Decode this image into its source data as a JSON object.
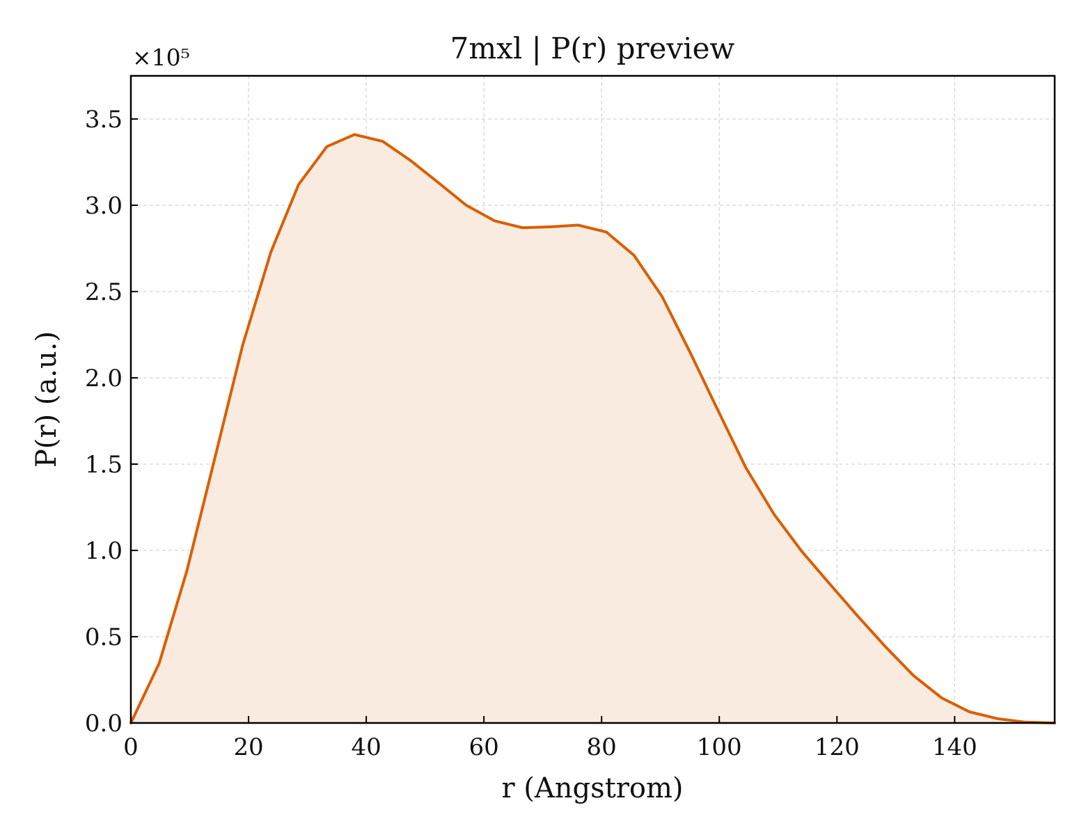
{
  "chart_data": {
    "type": "area",
    "title": "7mxl | P(r) preview",
    "xlabel": "r (Angstrom)",
    "ylabel": "P(r) (a.u.)",
    "y_multiplier_label": "×10⁵",
    "y_scale": 100000,
    "xlim": [
      0,
      157
    ],
    "ylim": [
      0,
      375000
    ],
    "x_ticks": [
      0,
      20,
      40,
      60,
      80,
      100,
      120,
      140
    ],
    "y_ticks": [
      0,
      50000,
      100000,
      150000,
      200000,
      250000,
      300000,
      350000
    ],
    "y_tick_labels": [
      "0.0",
      "0.5",
      "1.0",
      "1.5",
      "2.0",
      "2.5",
      "3.0",
      "3.5"
    ],
    "grid": true,
    "line_color": "#d95f02",
    "fill_color": "#f9ebe0",
    "series": [
      {
        "x": [
          0,
          4.8,
          9.5,
          14.3,
          19.0,
          23.8,
          28.5,
          33.3,
          38.0,
          42.8,
          47.5,
          52.3,
          57.0,
          61.8,
          66.5,
          71.3,
          76.0,
          80.8,
          85.5,
          90.3,
          95.0,
          99.8,
          104.5,
          109.3,
          114.0,
          118.8,
          123.5,
          128.3,
          133.0,
          137.8,
          142.5,
          147.3,
          152.0,
          157.0
        ],
        "y": [
          0,
          34500,
          88000,
          154000,
          219000,
          273000,
          312000,
          334000,
          341000,
          337000,
          326000,
          313000,
          300000,
          291000,
          287000,
          287500,
          288500,
          284500,
          271000,
          247000,
          215000,
          181000,
          148000,
          121000,
          99500,
          80500,
          62000,
          44000,
          27500,
          14500,
          6500,
          2500,
          500,
          0
        ]
      }
    ]
  }
}
